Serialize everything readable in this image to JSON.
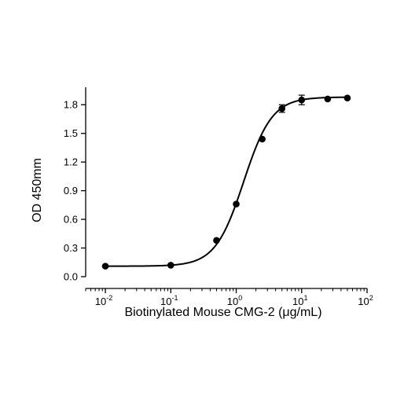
{
  "chart_data": {
    "type": "scatter",
    "title": "",
    "xlabel": "Biotinylated Mouse CMG-2 (μg/mL)",
    "ylabel": "OD 450mm",
    "x_scale": "log",
    "xlim": [
      0.005,
      100
    ],
    "ylim": [
      0,
      1.95
    ],
    "x_ticks": [
      {
        "value": 0.01,
        "base": "10",
        "exp": "-2"
      },
      {
        "value": 0.1,
        "base": "10",
        "exp": "-1"
      },
      {
        "value": 1,
        "base": "10",
        "exp": "0"
      },
      {
        "value": 10,
        "base": "10",
        "exp": "1"
      },
      {
        "value": 100,
        "base": "10",
        "exp": "2"
      }
    ],
    "y_ticks": [
      "0.0",
      "0.3",
      "0.6",
      "0.9",
      "1.2",
      "1.5",
      "1.8"
    ],
    "grid": false,
    "legend": "none",
    "colors": {
      "points": "#000000",
      "line": "#000000",
      "axis": "#000000"
    },
    "series": [
      {
        "x": [
          0.01,
          0.1,
          0.5,
          1,
          2.5,
          5,
          10,
          25,
          50
        ],
        "y": [
          0.11,
          0.12,
          0.38,
          0.76,
          1.44,
          1.76,
          1.85,
          1.86,
          1.87
        ],
        "error": [
          0,
          0,
          0,
          0,
          0,
          0.04,
          0.05,
          0,
          0
        ]
      }
    ],
    "fit_curve": {
      "model": "4PL",
      "bottom": 0.11,
      "top": 1.88,
      "ec50": 1.3,
      "hill": 2.0
    }
  }
}
